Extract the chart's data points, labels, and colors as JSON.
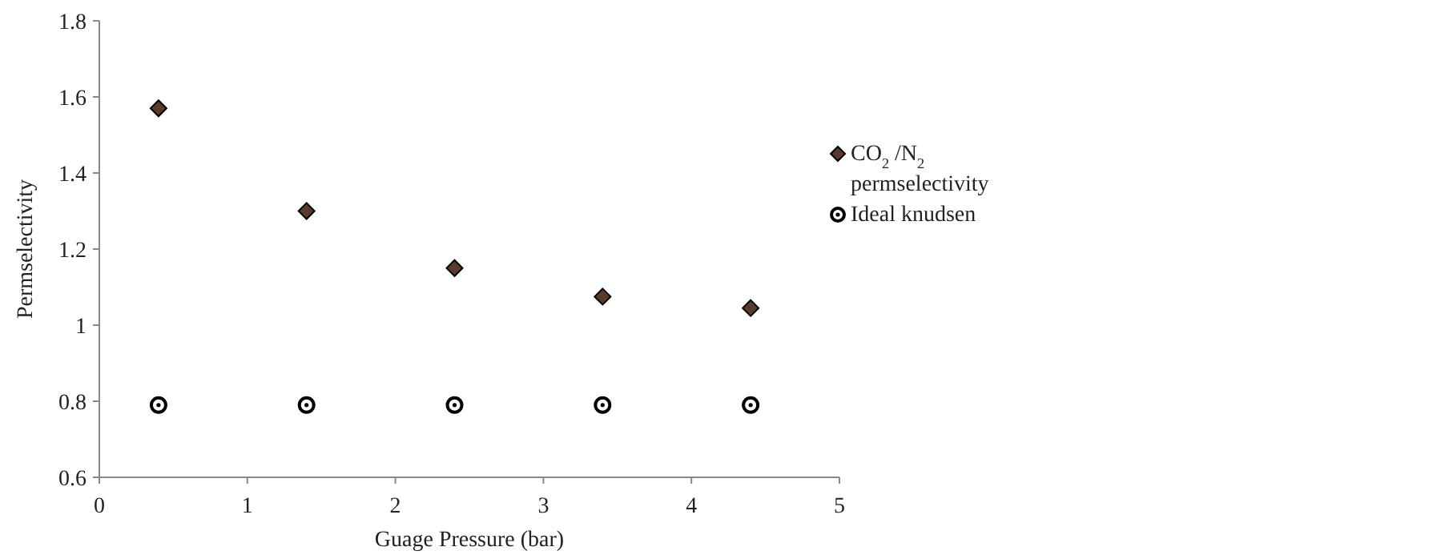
{
  "chart_data": {
    "type": "scatter",
    "xlabel": "Guage Pressure (bar)",
    "ylabel": "Permselectivity",
    "x": [
      0.4,
      1.4,
      2.4,
      3.4,
      4.4
    ],
    "series": [
      {
        "name": "CO$_{2}$ /N$_{2}$ permselectivity",
        "color": "#5a3a28",
        "marker": "diamond",
        "values": [
          1.57,
          1.3,
          1.15,
          1.075,
          1.045
        ]
      },
      {
        "name": "Ideal knudsen",
        "color": "#ffffff",
        "marker": "circle",
        "values": [
          0.79,
          0.79,
          0.79,
          0.79,
          0.79
        ]
      }
    ],
    "xlim": [
      0,
      5
    ],
    "xticks": [
      0,
      1,
      2,
      3,
      4,
      5
    ],
    "ylim": [
      0.6,
      1.8
    ],
    "yticks": [
      0.6,
      0.8,
      1,
      1.2,
      1.4,
      1.6,
      1.8
    ],
    "grid": false,
    "legend": "right"
  }
}
